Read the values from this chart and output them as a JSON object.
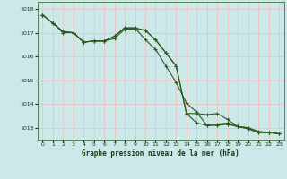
{
  "title": "Graphe pression niveau de la mer (hPa)",
  "bg_color": "#cde8e8",
  "grid_color": "#e8c8c8",
  "line_color": "#2d5a1e",
  "marker_color": "#2d5a1e",
  "label_color": "#1a3a10",
  "xlim": [
    -0.5,
    23.5
  ],
  "ylim": [
    1012.5,
    1018.3
  ],
  "yticks": [
    1013,
    1014,
    1015,
    1016,
    1017,
    1018
  ],
  "xticks": [
    0,
    1,
    2,
    3,
    4,
    5,
    6,
    7,
    8,
    9,
    10,
    11,
    12,
    13,
    14,
    15,
    16,
    17,
    18,
    19,
    20,
    21,
    22,
    23
  ],
  "series1": [
    1017.75,
    1017.4,
    1017.05,
    1017.0,
    1016.6,
    1016.65,
    1016.65,
    1016.75,
    1017.15,
    1017.15,
    1017.1,
    1016.7,
    1016.15,
    1015.6,
    1013.6,
    1013.2,
    1013.1,
    1013.15,
    1013.2,
    1013.05,
    1013.0,
    1012.8,
    1012.8,
    1012.75
  ],
  "series2": [
    1017.75,
    1017.4,
    1017.05,
    1017.0,
    1016.6,
    1016.65,
    1016.65,
    1016.85,
    1017.2,
    1017.2,
    1017.1,
    1016.7,
    1016.15,
    1015.6,
    1013.6,
    1013.6,
    1013.55,
    1013.6,
    1013.35,
    1013.05,
    1013.0,
    1012.85,
    1012.8,
    1012.75
  ],
  "series3": [
    1017.75,
    1017.4,
    1017.0,
    1017.0,
    1016.6,
    1016.65,
    1016.65,
    1016.85,
    1017.2,
    1017.2,
    1016.7,
    1016.3,
    1015.6,
    1014.9,
    1014.05,
    1013.65,
    1013.1,
    1013.1,
    1013.15,
    1013.05,
    1012.95,
    1012.8,
    1012.8,
    1012.75
  ]
}
